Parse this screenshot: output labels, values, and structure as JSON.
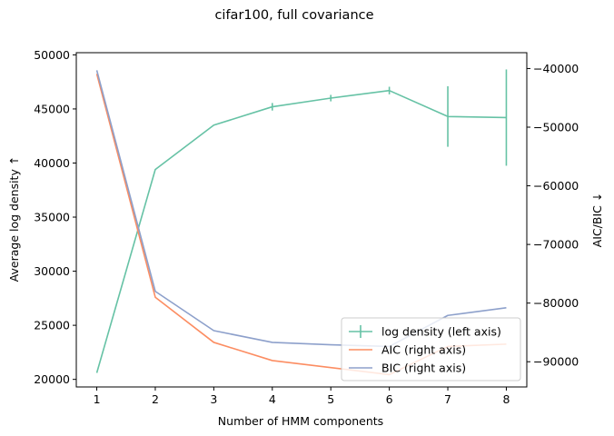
{
  "chart_data": {
    "type": "line",
    "title": "cifar100, full covariance",
    "xlabel": "Number of HMM components",
    "ylabel_left": "Average log density ↑",
    "ylabel_right": "AIC/BIC  ↓",
    "x": [
      1,
      2,
      3,
      4,
      5,
      6,
      7,
      8
    ],
    "x_ticks": [
      "1",
      "2",
      "3",
      "4",
      "5",
      "6",
      "7",
      "8"
    ],
    "xlim": [
      0.65,
      8.35
    ],
    "ylim_left": [
      19300,
      50200
    ],
    "ylim_right": [
      -94300,
      -37300
    ],
    "left_ticks": [
      {
        "value": 20000,
        "label": "20000"
      },
      {
        "value": 25000,
        "label": "25000"
      },
      {
        "value": 30000,
        "label": "30000"
      },
      {
        "value": 35000,
        "label": "35000"
      },
      {
        "value": 40000,
        "label": "40000"
      },
      {
        "value": 45000,
        "label": "45000"
      },
      {
        "value": 50000,
        "label": "50000"
      }
    ],
    "right_ticks": [
      {
        "value": -90000,
        "label": "−90000"
      },
      {
        "value": -80000,
        "label": "−80000"
      },
      {
        "value": -70000,
        "label": "−70000"
      },
      {
        "value": -60000,
        "label": "−60000"
      },
      {
        "value": -50000,
        "label": "−50000"
      },
      {
        "value": -40000,
        "label": "−40000"
      }
    ],
    "series": [
      {
        "name": "log density (left axis)",
        "axis": "left",
        "color": "#66c2a5",
        "values": [
          20600,
          39400,
          43500,
          45200,
          46000,
          46700,
          44300,
          44200
        ],
        "errors": [
          0,
          0,
          0,
          350,
          300,
          350,
          2800,
          4450
        ]
      },
      {
        "name": "AIC (right axis)",
        "axis": "right",
        "color": "#fc8d62",
        "values": [
          -40900,
          -79000,
          -86700,
          -89800,
          -91000,
          -92200,
          -87400,
          -87000
        ]
      },
      {
        "name": "BIC (right axis)",
        "axis": "right",
        "color": "#8da0cb",
        "values": [
          -40300,
          -78000,
          -84700,
          -86700,
          -87100,
          -87400,
          -82100,
          -80800
        ]
      }
    ],
    "legend_position": "bottom-right",
    "grid": false
  }
}
